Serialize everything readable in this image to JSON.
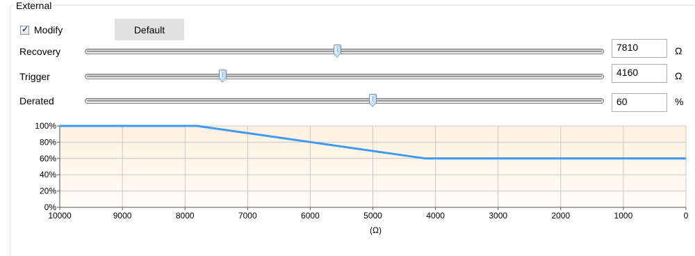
{
  "group": {
    "title": "External"
  },
  "modify": {
    "label": "Modify",
    "checked": true
  },
  "default_button": {
    "label": "Default"
  },
  "sliders": [
    {
      "label": "Recovery",
      "value": "7810",
      "unit": "Ω",
      "position": 0.486
    },
    {
      "label": "Trigger",
      "value": "4160",
      "unit": "Ω",
      "position": 0.264
    },
    {
      "label": "Derated",
      "value": "60",
      "unit": "%",
      "position": 0.555
    }
  ],
  "colors": {
    "line": "#3e9af0",
    "plot_bg_top": "#fdf1e1",
    "plot_bg_bottom": "#fffcf7",
    "grid": "#c8c8c8"
  },
  "chart_data": {
    "type": "line",
    "xlabel": "(Ω)",
    "ylabel": "",
    "xlim": [
      10000,
      0
    ],
    "ylim": [
      0,
      100
    ],
    "x_ticks": [
      "10000",
      "9000",
      "8000",
      "7000",
      "6000",
      "5000",
      "4000",
      "3000",
      "2000",
      "1000",
      "0"
    ],
    "y_ticks": [
      "100%",
      "80%",
      "60%",
      "40%",
      "20%",
      "0%"
    ],
    "grid": true,
    "series": [
      {
        "x": [
          10000,
          7810,
          4160,
          0
        ],
        "y": [
          100,
          100,
          60,
          60
        ]
      }
    ]
  }
}
